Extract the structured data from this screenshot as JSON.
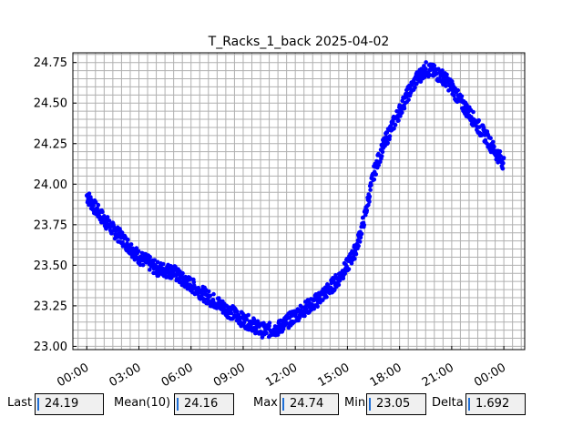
{
  "chart_data": {
    "type": "scatter",
    "title": "T_Racks_1_back 2025-04-02",
    "xlabel": "",
    "ylabel": "",
    "x_ticks": [
      "00:00",
      "03:00",
      "06:00",
      "09:00",
      "12:00",
      "15:00",
      "18:00",
      "21:00",
      "00:00"
    ],
    "y_ticks": [
      "23.00",
      "23.25",
      "23.50",
      "23.75",
      "24.00",
      "24.25",
      "24.50",
      "24.75"
    ],
    "xlim": [
      -0.8,
      25.2
    ],
    "ylim": [
      22.98,
      24.81
    ],
    "grid": true,
    "marker_color": "#0000ff",
    "series": [
      {
        "x": [
          0.0,
          0.5,
          1.0,
          1.5,
          2.0,
          2.5,
          3.0,
          3.5,
          4.0,
          4.5,
          5.0,
          5.5,
          6.0,
          6.5,
          7.0,
          7.5,
          8.0,
          8.5,
          9.0,
          9.5,
          10.0,
          10.5,
          11.0,
          11.5,
          12.0,
          12.5,
          13.0,
          13.5,
          14.0,
          14.5,
          15.0,
          15.5,
          16.0,
          16.5,
          17.0,
          17.5,
          18.0,
          18.5,
          19.0,
          19.5,
          20.0,
          20.5,
          21.0,
          21.5,
          22.0,
          22.5,
          23.0,
          23.5,
          24.0
        ],
        "y": [
          23.93,
          23.85,
          23.78,
          23.72,
          23.67,
          23.61,
          23.55,
          23.52,
          23.48,
          23.47,
          23.46,
          23.41,
          23.38,
          23.34,
          23.3,
          23.27,
          23.23,
          23.2,
          23.16,
          23.14,
          23.1,
          23.1,
          23.11,
          23.15,
          23.19,
          23.23,
          23.26,
          23.31,
          23.36,
          23.42,
          23.5,
          23.6,
          23.8,
          24.06,
          24.22,
          24.34,
          24.45,
          24.56,
          24.65,
          24.71,
          24.69,
          24.66,
          24.6,
          24.51,
          24.44,
          24.36,
          24.29,
          24.2,
          24.13
        ]
      }
    ]
  },
  "stats": {
    "last_label": "Last",
    "last_value": "24.19",
    "mean_label": "Mean(10)",
    "mean_value": "24.16",
    "max_label": "Max",
    "max_value": "24.74",
    "min_label": "Min",
    "min_value": "23.05",
    "delta_label": "Delta",
    "delta_value": "1.692"
  }
}
